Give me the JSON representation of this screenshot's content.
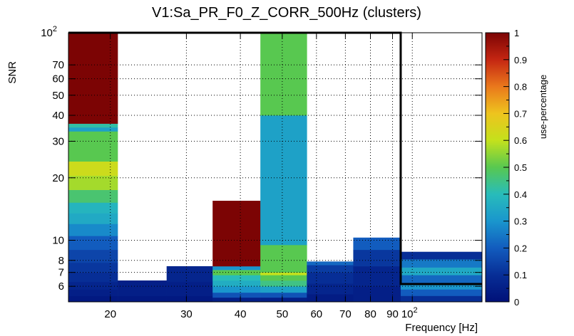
{
  "chart_data": {
    "type": "heatmap",
    "title": "V1:Sa_PR_F0_Z_CORR_500Hz (clusters)",
    "xlabel": "Frequency [Hz]",
    "ylabel": "SNR",
    "zlabel": "use-percentage",
    "x_scale": "log",
    "y_scale": "log",
    "xlim": [
      16,
      145
    ],
    "ylim": [
      5.05,
      100
    ],
    "zlim": [
      0,
      1
    ],
    "x_ticks": [
      {
        "value": 20,
        "label": "20"
      },
      {
        "value": 30,
        "label": "30"
      },
      {
        "value": 40,
        "label": "40"
      },
      {
        "value": 50,
        "label": "50"
      },
      {
        "value": 60,
        "label": "60"
      },
      {
        "value": 70,
        "label": "70"
      },
      {
        "value": 80,
        "label": "80"
      },
      {
        "value": 90,
        "label": "90"
      },
      {
        "value": 100,
        "label": "10",
        "exponent": "2"
      }
    ],
    "y_ticks": [
      {
        "value": 6,
        "label": "6"
      },
      {
        "value": 7,
        "label": "7"
      },
      {
        "value": 8,
        "label": "8"
      },
      {
        "value": 10,
        "label": "10"
      },
      {
        "value": 20,
        "label": "20"
      },
      {
        "value": 30,
        "label": "30"
      },
      {
        "value": 40,
        "label": "40"
      },
      {
        "value": 50,
        "label": "50"
      },
      {
        "value": 60,
        "label": "60"
      },
      {
        "value": 70,
        "label": "70"
      },
      {
        "value": 100,
        "label": "10",
        "exponent": "2"
      }
    ],
    "z_ticks": [
      {
        "value": 0,
        "label": "0"
      },
      {
        "value": 0.1,
        "label": "0.1"
      },
      {
        "value": 0.2,
        "label": "0.2"
      },
      {
        "value": 0.3,
        "label": "0.3"
      },
      {
        "value": 0.4,
        "label": "0.4"
      },
      {
        "value": 0.5,
        "label": "0.5"
      },
      {
        "value": 0.6,
        "label": "0.6"
      },
      {
        "value": 0.7,
        "label": "0.7"
      },
      {
        "value": 0.8,
        "label": "0.8"
      },
      {
        "value": 0.9,
        "label": "0.9"
      },
      {
        "value": 1,
        "label": "1"
      }
    ],
    "columns": [
      {
        "x0": 16,
        "x1": 20.8,
        "cells": [
          {
            "y0": 5.05,
            "y1": 5.4,
            "v": 0.03
          },
          {
            "y0": 5.4,
            "y1": 5.8,
            "v": 0.05
          },
          {
            "y0": 5.8,
            "y1": 6.3,
            "v": 0.07
          },
          {
            "y0": 6.3,
            "y1": 7.0,
            "v": 0.1
          },
          {
            "y0": 7.0,
            "y1": 7.8,
            "v": 0.12
          },
          {
            "y0": 7.8,
            "y1": 9.0,
            "v": 0.15
          },
          {
            "y0": 9.0,
            "y1": 10.5,
            "v": 0.2
          },
          {
            "y0": 10.5,
            "y1": 12.0,
            "v": 0.28
          },
          {
            "y0": 12.0,
            "y1": 13.5,
            "v": 0.35
          },
          {
            "y0": 13.5,
            "y1": 15.2,
            "v": 0.38
          },
          {
            "y0": 15.2,
            "y1": 17.5,
            "v": 0.47
          },
          {
            "y0": 17.5,
            "y1": 20.5,
            "v": 0.57
          },
          {
            "y0": 20.5,
            "y1": 24.0,
            "v": 0.62
          },
          {
            "y0": 24.0,
            "y1": 33.5,
            "v": 0.5
          },
          {
            "y0": 33.5,
            "y1": 35.0,
            "v": 0.33
          },
          {
            "y0": 35.0,
            "y1": 36.5,
            "v": 0.42
          },
          {
            "y0": 36.5,
            "y1": 100,
            "v": 1.0
          }
        ]
      },
      {
        "x0": 20.8,
        "x1": 27.0,
        "cells": [
          {
            "y0": 5.05,
            "y1": 5.4,
            "v": 0.03
          },
          {
            "y0": 5.4,
            "y1": 6.4,
            "v": 0.05
          }
        ]
      },
      {
        "x0": 27.0,
        "x1": 34.5,
        "cells": [
          {
            "y0": 5.05,
            "y1": 5.4,
            "v": 0.03
          },
          {
            "y0": 5.4,
            "y1": 6.3,
            "v": 0.05
          },
          {
            "y0": 6.3,
            "y1": 7.5,
            "v": 0.07
          }
        ]
      },
      {
        "x0": 34.5,
        "x1": 44.5,
        "cells": [
          {
            "y0": 5.05,
            "y1": 5.3,
            "v": 0.05
          },
          {
            "y0": 5.3,
            "y1": 5.6,
            "v": 0.18
          },
          {
            "y0": 5.6,
            "y1": 6.0,
            "v": 0.3
          },
          {
            "y0": 6.0,
            "y1": 6.4,
            "v": 0.36
          },
          {
            "y0": 6.4,
            "y1": 6.8,
            "v": 0.4
          },
          {
            "y0": 6.8,
            "y1": 7.2,
            "v": 0.5
          },
          {
            "y0": 7.2,
            "y1": 7.5,
            "v": 0.3
          },
          {
            "y0": 7.5,
            "y1": 15.5,
            "v": 1.0
          }
        ]
      },
      {
        "x0": 44.5,
        "x1": 57.0,
        "cells": [
          {
            "y0": 5.05,
            "y1": 5.3,
            "v": 0.05
          },
          {
            "y0": 5.3,
            "y1": 5.6,
            "v": 0.18
          },
          {
            "y0": 5.6,
            "y1": 6.0,
            "v": 0.33
          },
          {
            "y0": 6.0,
            "y1": 6.4,
            "v": 0.45
          },
          {
            "y0": 6.4,
            "y1": 6.8,
            "v": 0.5
          },
          {
            "y0": 6.8,
            "y1": 7.0,
            "v": 0.6
          },
          {
            "y0": 7.0,
            "y1": 9.5,
            "v": 0.5
          },
          {
            "y0": 9.5,
            "y1": 40.0,
            "v": 0.33
          },
          {
            "y0": 40.0,
            "y1": 100,
            "v": 0.5
          }
        ]
      },
      {
        "x0": 57.0,
        "x1": 73.0,
        "cells": [
          {
            "y0": 5.05,
            "y1": 5.5,
            "v": 0.04
          },
          {
            "y0": 5.5,
            "y1": 6.2,
            "v": 0.07
          },
          {
            "y0": 6.2,
            "y1": 7.0,
            "v": 0.1
          },
          {
            "y0": 7.0,
            "y1": 7.6,
            "v": 0.13
          },
          {
            "y0": 7.6,
            "y1": 7.9,
            "v": 0.22
          }
        ]
      },
      {
        "x0": 73.0,
        "x1": 94.0,
        "cells": [
          {
            "y0": 5.05,
            "y1": 6.0,
            "v": 0.05
          },
          {
            "y0": 6.0,
            "y1": 7.5,
            "v": 0.07
          },
          {
            "y0": 7.5,
            "y1": 9.0,
            "v": 0.12
          },
          {
            "y0": 9.0,
            "y1": 10.3,
            "v": 0.2
          }
        ]
      },
      {
        "x0": 94.0,
        "x1": 145,
        "cells": [
          {
            "y0": 5.05,
            "y1": 5.4,
            "v": 0.1
          },
          {
            "y0": 5.4,
            "y1": 5.8,
            "v": 0.2
          },
          {
            "y0": 5.8,
            "y1": 6.2,
            "v": 0.3
          },
          {
            "y0": 6.2,
            "y1": 6.8,
            "v": 0.22
          },
          {
            "y0": 6.8,
            "y1": 7.4,
            "v": 0.35
          },
          {
            "y0": 7.4,
            "y1": 8.1,
            "v": 0.25
          },
          {
            "y0": 8.1,
            "y1": 8.8,
            "v": 0.1
          }
        ]
      }
    ],
    "outline": [
      [
        16,
        100
      ],
      [
        94,
        100
      ],
      [
        94,
        6.15
      ],
      [
        145,
        6.15
      ]
    ]
  }
}
